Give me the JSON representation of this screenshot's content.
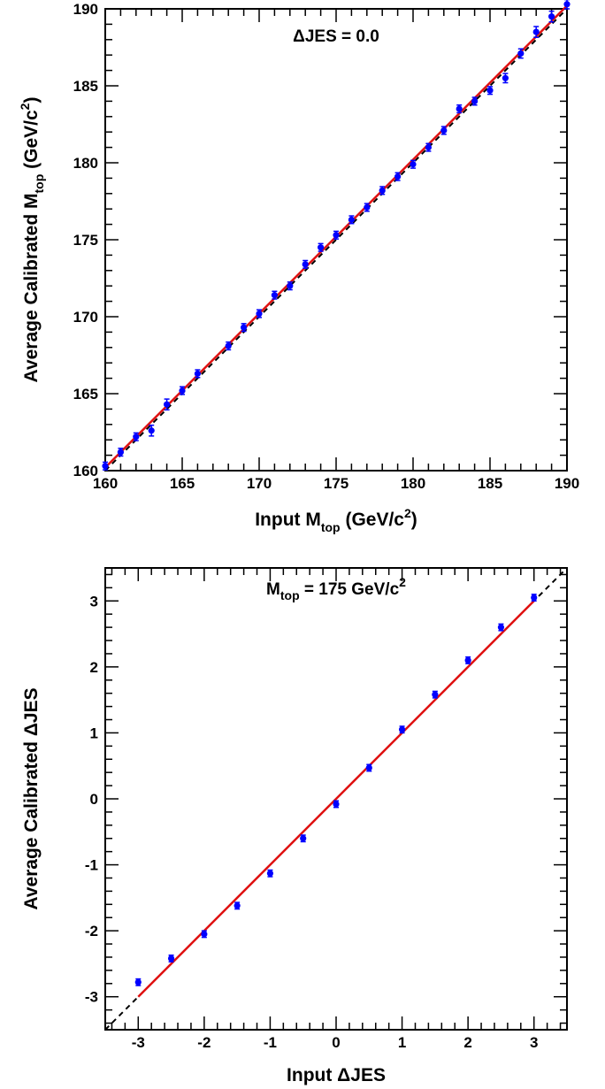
{
  "chart_data": [
    {
      "type": "scatter",
      "annotation": {
        "prefix": "ΔJES",
        "text": " = 0.0"
      },
      "xlabel": {
        "main": "Input M",
        "sub": "top",
        "unit_before_sup": "(GeV/c",
        "sup": "2",
        "unit_after_sup": ")"
      },
      "ylabel": {
        "main": "Average Calibrated M",
        "sub": "top",
        "unit_before_sup": "(GeV/c",
        "sup": "2",
        "unit_after_sup": ")"
      },
      "xlim": [
        160,
        190
      ],
      "ylim": [
        160,
        190
      ],
      "x_ticks": [
        "160",
        "165",
        "170",
        "175",
        "180",
        "185",
        "190"
      ],
      "y_ticks": [
        "160",
        "165",
        "170",
        "175",
        "180",
        "185",
        "190"
      ],
      "x": [
        160,
        161,
        162,
        163,
        164,
        165,
        166,
        168,
        169,
        170,
        171,
        172,
        173,
        174,
        175,
        176,
        177,
        178,
        179,
        180,
        181,
        182,
        183,
        184,
        185,
        186,
        187,
        188,
        189,
        190
      ],
      "y": [
        160.3,
        161.2,
        162.2,
        162.6,
        164.3,
        165.2,
        166.3,
        168.1,
        169.3,
        170.2,
        171.4,
        172.0,
        173.4,
        174.5,
        175.3,
        176.3,
        177.1,
        178.2,
        179.1,
        179.9,
        181.0,
        182.1,
        183.5,
        184.0,
        184.7,
        185.5,
        187.1,
        188.5,
        189.5,
        190.3
      ],
      "yerr": [
        0.25,
        0.25,
        0.25,
        0.35,
        0.35,
        0.25,
        0.25,
        0.25,
        0.25,
        0.25,
        0.25,
        0.25,
        0.25,
        0.25,
        0.25,
        0.25,
        0.25,
        0.25,
        0.25,
        0.25,
        0.25,
        0.25,
        0.25,
        0.25,
        0.25,
        0.3,
        0.3,
        0.35,
        0.35,
        0.3
      ],
      "fit_line": [
        [
          160,
          160.2
        ],
        [
          190,
          190.2
        ]
      ],
      "reference_line": [
        [
          160,
          160
        ],
        [
          190,
          190
        ]
      ],
      "colors": {
        "points": "#0000ff",
        "fit": "#e01010",
        "reference": "#000000"
      }
    },
    {
      "type": "scatter",
      "annotation": {
        "prefix": "M",
        "sub": "top",
        "text": " = 175 GeV/c",
        "sup": "2"
      },
      "xlabel": {
        "main": "Input ΔJES"
      },
      "ylabel": {
        "main": "Average Calibrated ΔJES"
      },
      "xlim": [
        -3.5,
        3.5
      ],
      "ylim": [
        -3.5,
        3.5
      ],
      "x_ticks": [
        "-3",
        "-2",
        "-1",
        "0",
        "1",
        "2",
        "3"
      ],
      "y_ticks": [
        "-3",
        "-2",
        "-1",
        "0",
        "1",
        "2",
        "3"
      ],
      "x": [
        -3,
        -2.5,
        -2,
        -1.5,
        -1,
        -0.5,
        0,
        0.5,
        1,
        1.5,
        2,
        2.5,
        3
      ],
      "y": [
        -2.78,
        -2.42,
        -2.05,
        -1.62,
        -1.13,
        -0.6,
        -0.08,
        0.47,
        1.05,
        1.58,
        2.1,
        2.6,
        3.05
      ],
      "yerr": [
        0.05,
        0.05,
        0.05,
        0.05,
        0.05,
        0.05,
        0.05,
        0.05,
        0.05,
        0.05,
        0.05,
        0.05,
        0.05
      ],
      "fit_line": [
        [
          -3,
          -3.0
        ],
        [
          3,
          3.0
        ]
      ],
      "reference_line": [
        [
          -3.5,
          -3.5
        ],
        [
          3.5,
          3.5
        ]
      ],
      "colors": {
        "points": "#0000ff",
        "fit": "#e01010",
        "reference": "#000000"
      }
    }
  ]
}
